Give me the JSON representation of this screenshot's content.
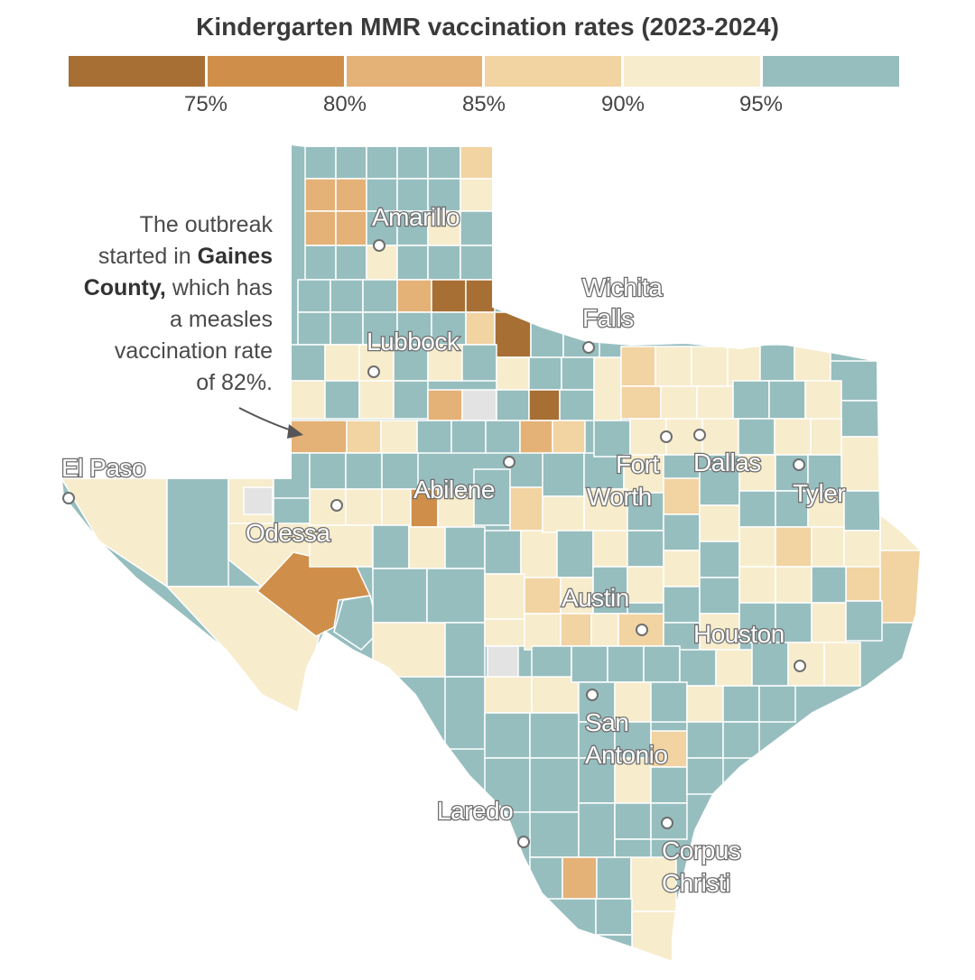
{
  "title": "Kindergarten MMR vaccination rates (2023-2024)",
  "legend": {
    "colors": [
      "#a76f33",
      "#cf8f4a",
      "#e4b176",
      "#f2d3a2",
      "#f7eccc",
      "#97bebf"
    ],
    "ticks": [
      "75%",
      "80%",
      "85%",
      "90%",
      "95%"
    ]
  },
  "annotation": {
    "line1": "The outbreak",
    "line2_pre": "started in ",
    "line2_bold": "Gaines",
    "line3_bold": "County,",
    "line3_post": " which has",
    "line4": "a measles",
    "line5": "vaccination rate",
    "line6": "of 82%."
  },
  "cities": {
    "amarillo": "Amarillo",
    "wichita_1": "Wichita",
    "wichita_2": "Falls",
    "lubbock": "Lubbock",
    "el_paso": "El Paso",
    "fort": "Fort",
    "worth": "Worth",
    "dallas": "Dallas",
    "tyler": "Tyler",
    "abilene": "Abilene",
    "odessa": "Odessa",
    "austin": "Austin",
    "houston": "Houston",
    "san": "San",
    "antonio": "Antonio",
    "laredo": "Laredo",
    "corpus": "Corpus",
    "christi": "Christi"
  }
}
